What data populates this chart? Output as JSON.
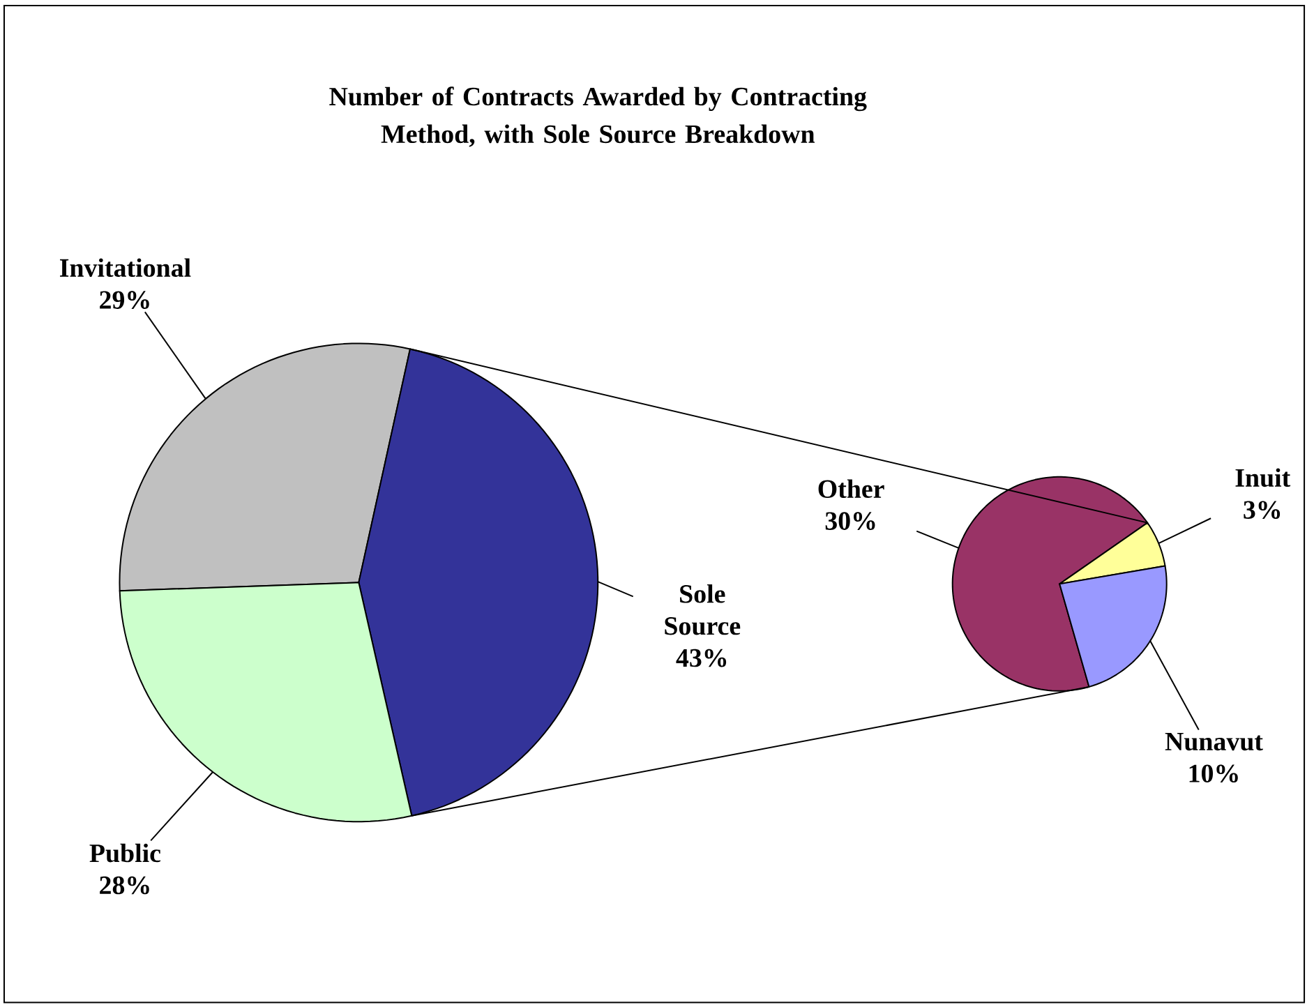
{
  "chart_data": [
    {
      "type": "pie",
      "title": "Number of Contracts Awarded by Contracting  Method, with Sole Source Breakdown",
      "categories": [
        "Invitational",
        "Sole Source",
        "Public"
      ],
      "values": [
        29,
        43,
        28
      ],
      "colors": [
        "#c0c0c0",
        "#333399",
        "#ccffcc"
      ],
      "value_labels": [
        "29%",
        "43%",
        "28%"
      ]
    },
    {
      "type": "pie",
      "categories": [
        "Other",
        "Inuit",
        "Nunavut"
      ],
      "values": [
        30,
        3,
        10
      ],
      "colors": [
        "#993366",
        "#ffff99",
        "#9999ff"
      ],
      "value_labels": [
        "30%",
        "3%",
        "10%"
      ]
    }
  ]
}
